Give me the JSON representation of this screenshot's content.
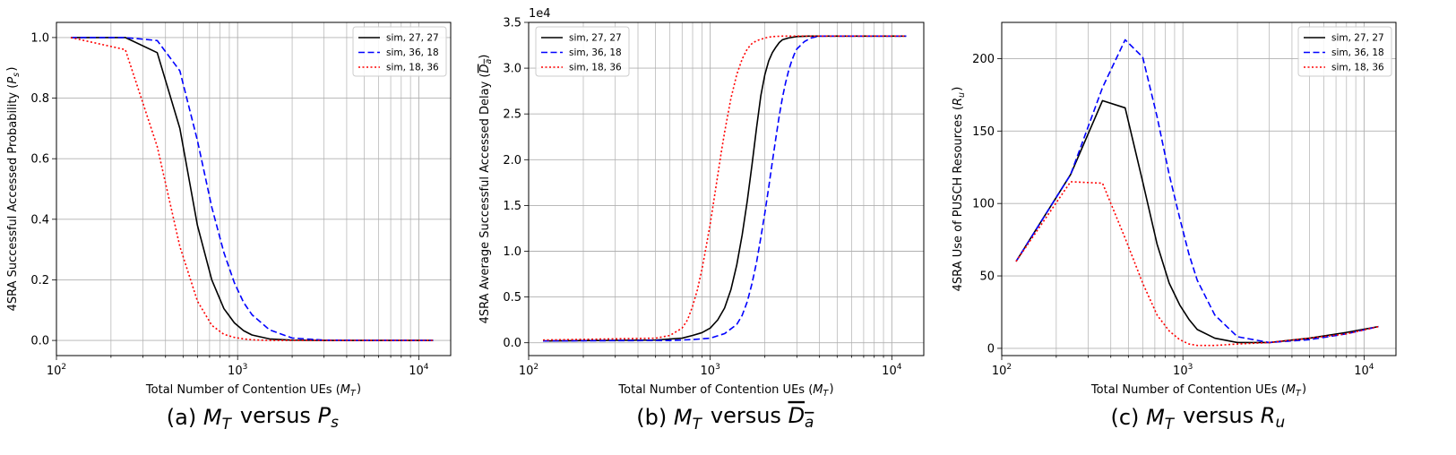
{
  "chart_data": [
    {
      "type": "line",
      "caption_prefix": "(a) ",
      "caption_math": "M_T versus P_s",
      "xlabel": "Total Number of Contention UEs (M_T)",
      "ylabel": "4SRA Successful Accessed Probability (P_s)",
      "xscale": "log",
      "xlim": [
        100,
        15000
      ],
      "ylim": [
        -0.05,
        1.05
      ],
      "yticks": [
        0,
        0.2,
        0.4,
        0.6,
        0.8,
        1.0
      ],
      "ytick_labels": [
        "0.0",
        "0.2",
        "0.4",
        "0.6",
        "0.8",
        "1.0"
      ],
      "xtick_labels": [
        "10^2",
        "10^3",
        "10^4"
      ],
      "offset_label": "",
      "grid": true,
      "legend_position": "top-right",
      "series": [
        {
          "name": "sim, 27, 27",
          "style": "solid",
          "color": "#000000",
          "x": [
            120,
            240,
            360,
            480,
            600,
            720,
            840,
            960,
            1080,
            1200,
            1500,
            2000,
            3000,
            5000,
            8000,
            12000
          ],
          "y": [
            1.0,
            1.0,
            0.95,
            0.7,
            0.38,
            0.2,
            0.105,
            0.058,
            0.032,
            0.018,
            0.005,
            0.001,
            0.0,
            0.0,
            0.0,
            0.0
          ]
        },
        {
          "name": "sim, 36, 18",
          "style": "dashed",
          "color": "#0000ff",
          "x": [
            120,
            240,
            360,
            480,
            600,
            720,
            840,
            960,
            1080,
            1200,
            1500,
            2000,
            3000,
            5000,
            8000,
            12000
          ],
          "y": [
            1.0,
            1.0,
            0.99,
            0.89,
            0.66,
            0.44,
            0.29,
            0.19,
            0.125,
            0.085,
            0.035,
            0.008,
            0.001,
            0.0,
            0.0,
            0.0
          ]
        },
        {
          "name": "sim, 18, 36",
          "style": "dotted",
          "color": "#ff0000",
          "x": [
            120,
            240,
            360,
            480,
            600,
            720,
            840,
            960,
            1080,
            1200,
            1500,
            2000,
            3000,
            5000,
            8000,
            12000
          ],
          "y": [
            1.0,
            0.96,
            0.64,
            0.31,
            0.13,
            0.05,
            0.02,
            0.01,
            0.005,
            0.002,
            0.0,
            0.0,
            0.0,
            0.0,
            0.0,
            0.0
          ]
        }
      ]
    },
    {
      "type": "line",
      "caption_prefix": "(b) ",
      "caption_math": "M_T versus D_a (overline)",
      "xlabel": "Total Number of Contention UEs (M_T)",
      "ylabel": "4SRA Average Successful Accessed Delay (D_a overline)",
      "xscale": "log",
      "xlim": [
        100,
        15000
      ],
      "ylim": [
        -1400,
        35000
      ],
      "yticks": [
        0,
        5000,
        10000,
        15000,
        20000,
        25000,
        30000,
        35000
      ],
      "ytick_labels": [
        "0.0",
        "0.5",
        "1.0",
        "1.5",
        "2.0",
        "2.5",
        "3.0",
        "3.5"
      ],
      "xtick_labels": [
        "10^2",
        "10^3",
        "10^4"
      ],
      "offset_label": "1e4",
      "grid": true,
      "legend_position": "top-left",
      "series": [
        {
          "name": "sim, 27, 27",
          "style": "solid",
          "color": "#000000",
          "x": [
            120,
            500,
            700,
            800,
            900,
            1000,
            1100,
            1200,
            1300,
            1400,
            1500,
            1600,
            1700,
            1800,
            1900,
            2000,
            2100,
            2200,
            2300,
            2400,
            2500,
            2700,
            3000,
            3500,
            4000,
            5000,
            12000
          ],
          "y": [
            200,
            300,
            500,
            800,
            1100,
            1600,
            2500,
            3800,
            5800,
            8500,
            11800,
            15500,
            19500,
            23500,
            27000,
            29300,
            30800,
            31700,
            32300,
            32800,
            33100,
            33300,
            33450,
            33500,
            33500,
            33500,
            33500
          ]
        },
        {
          "name": "sim, 36, 18",
          "style": "dashed",
          "color": "#0000ff",
          "x": [
            120,
            600,
            800,
            1000,
            1200,
            1400,
            1500,
            1600,
            1700,
            1800,
            1900,
            2000,
            2100,
            2200,
            2300,
            2400,
            2500,
            2600,
            2700,
            2800,
            2900,
            3000,
            3300,
            3600,
            4000,
            5000,
            12000
          ],
          "y": [
            200,
            250,
            350,
            500,
            1000,
            2000,
            3000,
            4500,
            6500,
            8800,
            11500,
            14200,
            17000,
            19800,
            22400,
            24800,
            26800,
            28400,
            29700,
            30700,
            31500,
            32100,
            32900,
            33300,
            33500,
            33500,
            33500
          ]
        },
        {
          "name": "sim, 18, 36",
          "style": "dotted",
          "color": "#ff0000",
          "x": [
            120,
            500,
            600,
            700,
            750,
            800,
            850,
            900,
            950,
            1000,
            1050,
            1100,
            1150,
            1200,
            1300,
            1400,
            1500,
            1600,
            1700,
            1800,
            2000,
            2200,
            2500,
            3000,
            12000
          ],
          "y": [
            300,
            500,
            800,
            1600,
            2500,
            4000,
            5800,
            8000,
            10500,
            13000,
            15700,
            18300,
            20800,
            23000,
            26700,
            29300,
            31000,
            32100,
            32700,
            33000,
            33300,
            33450,
            33500,
            33500,
            33500
          ]
        }
      ]
    },
    {
      "type": "line",
      "caption_prefix": "(c) ",
      "caption_math": "M_T versus R_u",
      "xlabel": "Total Number of Contention UEs (M_T)",
      "ylabel": "4SRA Use of PUSCH Resources (R_u)",
      "xscale": "log",
      "xlim": [
        100,
        15000
      ],
      "ylim": [
        -5,
        225
      ],
      "yticks": [
        0,
        50,
        100,
        150,
        200
      ],
      "ytick_labels": [
        "0",
        "50",
        "100",
        "150",
        "200"
      ],
      "xtick_labels": [
        "10^2",
        "10^3",
        "10^4"
      ],
      "offset_label": "",
      "grid": true,
      "legend_position": "top-right",
      "series": [
        {
          "name": "sim, 27, 27",
          "style": "solid",
          "color": "#000000",
          "x": [
            120,
            240,
            360,
            480,
            600,
            720,
            840,
            960,
            1080,
            1200,
            1500,
            2000,
            3000,
            5000,
            8000,
            12000
          ],
          "y": [
            60,
            120,
            171,
            166,
            115,
            72,
            45,
            30,
            20,
            13,
            7,
            4,
            4,
            7,
            11,
            15
          ]
        },
        {
          "name": "sim, 36, 18",
          "style": "dashed",
          "color": "#0000ff",
          "x": [
            120,
            240,
            360,
            480,
            600,
            720,
            840,
            960,
            1080,
            1200,
            1500,
            2000,
            3000,
            5000,
            8000,
            12000
          ],
          "y": [
            60,
            120,
            180,
            213,
            201,
            160,
            120,
            90,
            65,
            47,
            23,
            8,
            4,
            6,
            10,
            15
          ]
        },
        {
          "name": "sim, 18, 36",
          "style": "dotted",
          "color": "#ff0000",
          "x": [
            120,
            240,
            360,
            480,
            600,
            720,
            840,
            960,
            1080,
            1200,
            1500,
            2000,
            3000,
            5000,
            8000,
            12000
          ],
          "y": [
            60,
            115,
            114,
            76,
            45,
            23,
            12,
            6,
            3,
            2,
            2,
            3,
            4,
            7,
            10,
            15
          ]
        }
      ]
    }
  ]
}
